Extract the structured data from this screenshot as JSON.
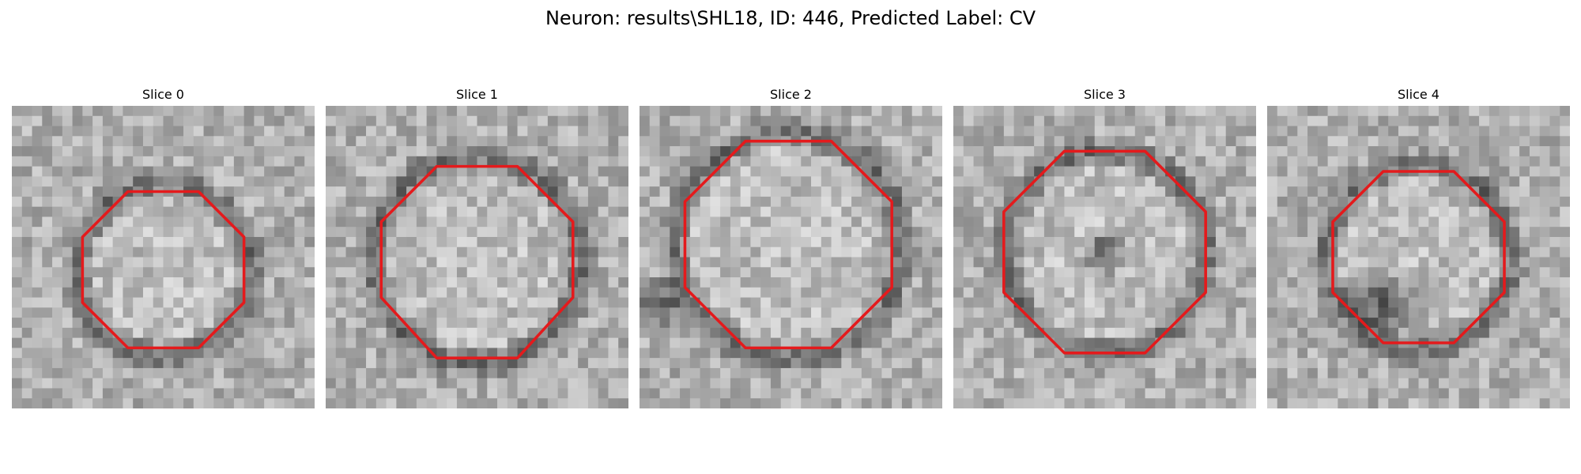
{
  "figure": {
    "title": "Neuron: results\\SHL18, ID: 446, Predicted Label: CV",
    "outline_color": "#e41a1c"
  },
  "slices": [
    {
      "title": "Slice 0"
    },
    {
      "title": "Slice 1"
    },
    {
      "title": "Slice 2"
    },
    {
      "title": "Slice 3"
    },
    {
      "title": "Slice 4"
    }
  ]
}
